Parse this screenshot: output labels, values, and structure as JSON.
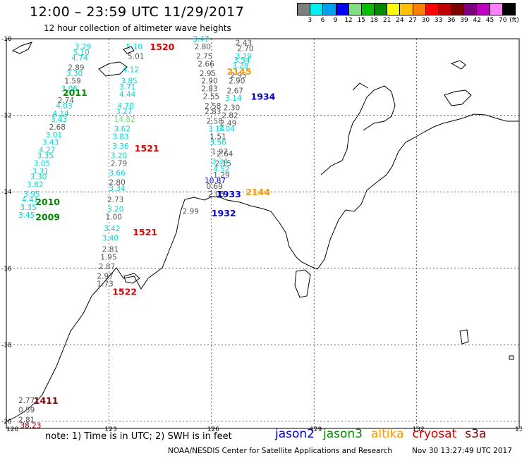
{
  "header": {
    "title": "12:00 – 23:59 UTC 11/29/2017",
    "subtitle": "12 hour collection of altimeter wave heights"
  },
  "legend": {
    "unit": "(ft)",
    "bins": [
      {
        "label": "3",
        "color": "#7f7f7f"
      },
      {
        "label": "6",
        "color": "#00f0f0"
      },
      {
        "label": "9",
        "color": "#00a0f0"
      },
      {
        "label": "12",
        "color": "#0000ff"
      },
      {
        "label": "15",
        "color": "#7fe07f"
      },
      {
        "label": "18",
        "color": "#00c000"
      },
      {
        "label": "21",
        "color": "#008800"
      },
      {
        "label": "24",
        "color": "#ffff00"
      },
      {
        "label": "27",
        "color": "#ffc000"
      },
      {
        "label": "30",
        "color": "#ff7f00"
      },
      {
        "label": "33",
        "color": "#ff0000"
      },
      {
        "label": "36",
        "color": "#c00000"
      },
      {
        "label": "39",
        "color": "#7f0000"
      },
      {
        "label": "42",
        "color": "#7f007f"
      },
      {
        "label": "45",
        "color": "#c000c0"
      },
      {
        "label": "70",
        "color": "#ff80ff"
      },
      {
        "label": "",
        "color": "#000000"
      }
    ]
  },
  "map": {
    "lon_ticks": [
      "120",
      "123",
      "126",
      "129",
      "132",
      "135"
    ],
    "lat_ticks": [
      "-10",
      "-12",
      "-14",
      "-16",
      "-18",
      "-20"
    ],
    "lon_range": [
      120,
      135
    ],
    "lat_range": [
      -10,
      -20
    ],
    "swh_points": [
      {
        "lon": 122.0,
        "lat": -10.2,
        "v": "3.29",
        "c": "#00d8d8"
      },
      {
        "lon": 121.95,
        "lat": -10.35,
        "v": "5.10",
        "c": "#00d8d8"
      },
      {
        "lon": 121.9,
        "lat": -10.5,
        "v": "4.74",
        "c": "#00d8d8"
      },
      {
        "lon": 121.8,
        "lat": -10.75,
        "v": "2.89",
        "c": "#555555"
      },
      {
        "lon": 121.75,
        "lat": -10.9,
        "v": "3.30",
        "c": "#00d8d8"
      },
      {
        "lon": 121.7,
        "lat": -11.1,
        "v": "1.59",
        "c": "#555555"
      },
      {
        "lon": 121.6,
        "lat": -11.3,
        "v": "3.06",
        "c": "#00d8d8"
      },
      {
        "lon": 121.5,
        "lat": -11.6,
        "v": "2.74",
        "c": "#555555"
      },
      {
        "lon": 121.45,
        "lat": -11.75,
        "v": "4.03",
        "c": "#00d8d8"
      },
      {
        "lon": 121.35,
        "lat": -11.95,
        "v": "4.14",
        "c": "#00d8d8"
      },
      {
        "lon": 121.3,
        "lat": -12.1,
        "v": "3.43",
        "c": "#00d8d8"
      },
      {
        "lon": 121.25,
        "lat": -12.3,
        "v": "2.68",
        "c": "#555555"
      },
      {
        "lon": 121.15,
        "lat": -12.5,
        "v": "3.01",
        "c": "#00d8d8"
      },
      {
        "lon": 121.05,
        "lat": -12.7,
        "v": "3.43",
        "c": "#00d8d8"
      },
      {
        "lon": 120.95,
        "lat": -12.9,
        "v": "4.27",
        "c": "#00d8d8"
      },
      {
        "lon": 120.9,
        "lat": -13.05,
        "v": "3.35",
        "c": "#00d8d8"
      },
      {
        "lon": 120.8,
        "lat": -13.25,
        "v": "3.05",
        "c": "#00d8d8"
      },
      {
        "lon": 120.75,
        "lat": -13.45,
        "v": "3.31",
        "c": "#00d8d8"
      },
      {
        "lon": 120.7,
        "lat": -13.6,
        "v": "3.30",
        "c": "#00d8d8"
      },
      {
        "lon": 120.6,
        "lat": -13.8,
        "v": "3.82",
        "c": "#00d8d8"
      },
      {
        "lon": 120.5,
        "lat": -14.05,
        "v": "3.95",
        "c": "#00d8d8"
      },
      {
        "lon": 120.45,
        "lat": -14.2,
        "v": "4.41",
        "c": "#00d8d8"
      },
      {
        "lon": 120.4,
        "lat": -14.4,
        "v": "3.35",
        "c": "#00d8d8"
      },
      {
        "lon": 120.35,
        "lat": -14.6,
        "v": "3.45",
        "c": "#00d8d8"
      },
      {
        "lon": 125.45,
        "lat": -10.0,
        "v": "3.47",
        "c": "#00d8d8"
      },
      {
        "lon": 125.5,
        "lat": -10.2,
        "v": "2.80",
        "c": "#555555"
      },
      {
        "lon": 125.55,
        "lat": -10.45,
        "v": "2.75",
        "c": "#555555"
      },
      {
        "lon": 125.6,
        "lat": -10.65,
        "v": "2.66",
        "c": "#555555"
      },
      {
        "lon": 125.65,
        "lat": -10.9,
        "v": "2.95",
        "c": "#555555"
      },
      {
        "lon": 125.7,
        "lat": -11.1,
        "v": "2.90",
        "c": "#555555"
      },
      {
        "lon": 125.7,
        "lat": -11.3,
        "v": "2.83",
        "c": "#555555"
      },
      {
        "lon": 125.75,
        "lat": -11.5,
        "v": "2.55",
        "c": "#555555"
      },
      {
        "lon": 125.8,
        "lat": -11.75,
        "v": "2.58",
        "c": "#555555"
      },
      {
        "lon": 125.8,
        "lat": -11.9,
        "v": "2.83",
        "c": "#555555"
      },
      {
        "lon": 125.85,
        "lat": -12.15,
        "v": "2.58",
        "c": "#555555"
      },
      {
        "lon": 125.9,
        "lat": -12.35,
        "v": "3.14",
        "c": "#00d8d8"
      },
      {
        "lon": 125.95,
        "lat": -12.55,
        "v": "1.51",
        "c": "#555555"
      },
      {
        "lon": 125.95,
        "lat": -12.7,
        "v": "3.56",
        "c": "#00d8d8"
      },
      {
        "lon": 126.0,
        "lat": -12.95,
        "v": "1.97",
        "c": "#555555"
      },
      {
        "lon": 126.0,
        "lat": -13.2,
        "v": "3.34",
        "c": "#00d8d8"
      },
      {
        "lon": 126.05,
        "lat": -13.4,
        "v": "4.52",
        "c": "#00d8d8"
      },
      {
        "lon": 125.8,
        "lat": -13.7,
        "v": "10.87",
        "c": "#0000ff"
      },
      {
        "lon": 125.85,
        "lat": -13.85,
        "v": "0.69",
        "c": "#555555"
      },
      {
        "lon": 125.9,
        "lat": -14.05,
        "v": "2.05",
        "c": "#555555"
      },
      {
        "lon": 125.15,
        "lat": -14.5,
        "v": "2.99",
        "c": "#555555"
      },
      {
        "lon": 126.7,
        "lat": -10.1,
        "v": "2.43",
        "c": "#555555"
      },
      {
        "lon": 126.75,
        "lat": -10.25,
        "v": "2.70",
        "c": "#555555"
      },
      {
        "lon": 126.7,
        "lat": -10.45,
        "v": "3.19",
        "c": "#00d8d8"
      },
      {
        "lon": 126.65,
        "lat": -10.55,
        "v": "3.54",
        "c": "#00d8d8"
      },
      {
        "lon": 126.6,
        "lat": -10.7,
        "v": "3.28",
        "c": "#00d8d8"
      },
      {
        "lon": 126.55,
        "lat": -10.95,
        "v": "2.95",
        "c": "#555555"
      },
      {
        "lon": 126.5,
        "lat": -11.1,
        "v": "2.90",
        "c": "#555555"
      },
      {
        "lon": 126.45,
        "lat": -11.35,
        "v": "2.67",
        "c": "#555555"
      },
      {
        "lon": 126.4,
        "lat": -11.55,
        "v": "3.14",
        "c": "#00d8d8"
      },
      {
        "lon": 126.35,
        "lat": -11.8,
        "v": "2.30",
        "c": "#555555"
      },
      {
        "lon": 126.3,
        "lat": -12.0,
        "v": "2.82",
        "c": "#555555"
      },
      {
        "lon": 126.25,
        "lat": -12.2,
        "v": "2.49",
        "c": "#555555"
      },
      {
        "lon": 126.2,
        "lat": -12.35,
        "v": "3.04",
        "c": "#00d8d8"
      },
      {
        "lon": 126.15,
        "lat": -13.0,
        "v": "2.64",
        "c": "#555555"
      },
      {
        "lon": 126.1,
        "lat": -13.25,
        "v": "2.15",
        "c": "#555555"
      },
      {
        "lon": 126.05,
        "lat": -13.55,
        "v": "1.29",
        "c": "#555555"
      },
      {
        "lon": 123.5,
        "lat": -10.2,
        "v": "5.10",
        "c": "#00d8d8"
      },
      {
        "lon": 123.55,
        "lat": -10.45,
        "v": "5.01",
        "c": "#555555"
      },
      {
        "lon": 123.4,
        "lat": -10.8,
        "v": "4.12",
        "c": "#00d8d8"
      },
      {
        "lon": 123.35,
        "lat": -11.1,
        "v": "3.85",
        "c": "#00d8d8"
      },
      {
        "lon": 123.3,
        "lat": -11.25,
        "v": "3.71",
        "c": "#00d8d8"
      },
      {
        "lon": 123.3,
        "lat": -11.45,
        "v": "4.44",
        "c": "#00d8d8"
      },
      {
        "lon": 123.25,
        "lat": -11.75,
        "v": "4.70",
        "c": "#00d8d8"
      },
      {
        "lon": 123.2,
        "lat": -11.9,
        "v": "3.27",
        "c": "#00d8d8"
      },
      {
        "lon": 123.15,
        "lat": -12.1,
        "v": "14.82",
        "c": "#7fe07f"
      },
      {
        "lon": 123.15,
        "lat": -12.35,
        "v": "3.62",
        "c": "#00d8d8"
      },
      {
        "lon": 123.1,
        "lat": -12.55,
        "v": "3.83",
        "c": "#00d8d8"
      },
      {
        "lon": 123.1,
        "lat": -12.8,
        "v": "3.36",
        "c": "#00d8d8"
      },
      {
        "lon": 123.05,
        "lat": -13.05,
        "v": "3.20",
        "c": "#00d8d8"
      },
      {
        "lon": 123.05,
        "lat": -13.25,
        "v": "2.79",
        "c": "#555555"
      },
      {
        "lon": 123.0,
        "lat": -13.5,
        "v": "3.66",
        "c": "#00d8d8"
      },
      {
        "lon": 123.0,
        "lat": -13.75,
        "v": "2.80",
        "c": "#555555"
      },
      {
        "lon": 123.0,
        "lat": -13.9,
        "v": "3.34",
        "c": "#00d8d8"
      },
      {
        "lon": 122.95,
        "lat": -14.2,
        "v": "2.73",
        "c": "#555555"
      },
      {
        "lon": 122.95,
        "lat": -14.45,
        "v": "3.20",
        "c": "#00d8d8"
      },
      {
        "lon": 122.9,
        "lat": -14.65,
        "v": "1.00",
        "c": "#555555"
      },
      {
        "lon": 122.85,
        "lat": -14.95,
        "v": "3.42",
        "c": "#00d8d8"
      },
      {
        "lon": 122.8,
        "lat": -15.2,
        "v": "3.40",
        "c": "#00d8d8"
      },
      {
        "lon": 122.8,
        "lat": -15.5,
        "v": "2.81",
        "c": "#555555"
      },
      {
        "lon": 122.75,
        "lat": -15.7,
        "v": "1.95",
        "c": "#555555"
      },
      {
        "lon": 122.7,
        "lat": -15.95,
        "v": "2.87",
        "c": "#555555"
      },
      {
        "lon": 122.65,
        "lat": -16.2,
        "v": "2.97",
        "c": "#555555"
      },
      {
        "lon": 122.65,
        "lat": -16.4,
        "v": "1.73",
        "c": "#555555"
      },
      {
        "lon": 120.35,
        "lat": -19.45,
        "v": "2.77",
        "c": "#555555"
      },
      {
        "lon": 120.35,
        "lat": -19.7,
        "v": "0.59",
        "c": "#555555"
      },
      {
        "lon": 120.35,
        "lat": -19.95,
        "v": "2.81",
        "c": "#555555"
      },
      {
        "lon": 120.4,
        "lat": -20.1,
        "v": "38.23",
        "c": "#7f0000"
      }
    ],
    "time_labels": [
      {
        "lon": 124.2,
        "lat": -10.2,
        "t": "1520",
        "c": "#dd0000"
      },
      {
        "lon": 121.65,
        "lat": -11.4,
        "t": "2011",
        "c": "#008800"
      },
      {
        "lon": 120.85,
        "lat": -14.25,
        "t": "2010",
        "c": "#008800"
      },
      {
        "lon": 120.85,
        "lat": -14.65,
        "t": "2009",
        "c": "#008800"
      },
      {
        "lon": 123.75,
        "lat": -12.85,
        "t": "1521",
        "c": "#dd0000"
      },
      {
        "lon": 123.7,
        "lat": -15.05,
        "t": "1521",
        "c": "#dd0000"
      },
      {
        "lon": 123.1,
        "lat": -16.6,
        "t": "1522",
        "c": "#dd0000"
      },
      {
        "lon": 126.45,
        "lat": -10.85,
        "t": "2145",
        "c": "#ff9900"
      },
      {
        "lon": 127.15,
        "lat": -11.5,
        "t": "1934",
        "c": "#0000cc"
      },
      {
        "lon": 127.0,
        "lat": -14.0,
        "t": "2144",
        "c": "#ff9900"
      },
      {
        "lon": 126.15,
        "lat": -14.05,
        "t": "1933",
        "c": "#0000cc"
      },
      {
        "lon": 126.0,
        "lat": -14.55,
        "t": "1932",
        "c": "#0000cc"
      },
      {
        "lon": 120.8,
        "lat": -19.45,
        "t": "1411",
        "c": "#7f0000"
      }
    ]
  },
  "note": "note: 1) Time is in UTC; 2) SWH is in feet",
  "satellites": [
    {
      "name": "jason2",
      "color": "#0000cc"
    },
    {
      "name": "jason3",
      "color": "#008800"
    },
    {
      "name": "altika",
      "color": "#ff9900"
    },
    {
      "name": "cryosat",
      "color": "#dd0000"
    },
    {
      "name": "s3a",
      "color": "#7f0000"
    }
  ],
  "footer": {
    "credit": "NOAA/NESDIS Center for Satellite Applications and Research",
    "timestamp": "Nov 30 13:27:49 UTC 2017"
  }
}
